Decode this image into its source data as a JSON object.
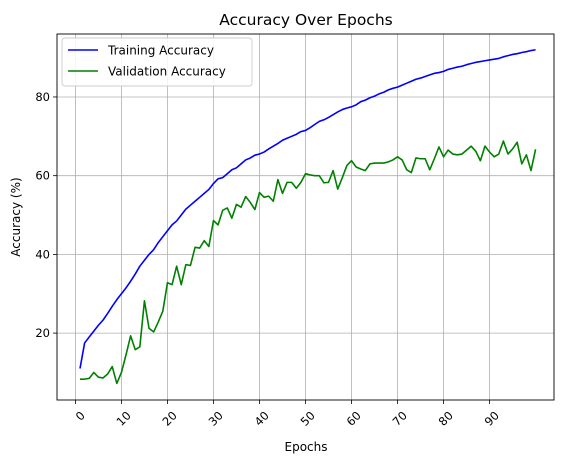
{
  "chart_data": {
    "type": "line",
    "title": "Accuracy Over Epochs",
    "xlabel": "Epochs",
    "ylabel": "Accuracy (%)",
    "xlim": [
      -4,
      104
    ],
    "ylim": [
      3,
      96
    ],
    "xticks": [
      0,
      10,
      20,
      30,
      40,
      50,
      60,
      70,
      80,
      90
    ],
    "yticks": [
      20,
      40,
      60,
      80
    ],
    "grid": true,
    "legend_position": "top-left",
    "x": [
      1,
      2,
      3,
      4,
      5,
      6,
      7,
      8,
      9,
      10,
      11,
      12,
      13,
      14,
      15,
      16,
      17,
      18,
      19,
      20,
      21,
      22,
      23,
      24,
      25,
      26,
      27,
      28,
      29,
      30,
      31,
      32,
      33,
      34,
      35,
      36,
      37,
      38,
      39,
      40,
      41,
      42,
      43,
      44,
      45,
      46,
      47,
      48,
      49,
      50,
      51,
      52,
      53,
      54,
      55,
      56,
      57,
      58,
      59,
      60,
      61,
      62,
      63,
      64,
      65,
      66,
      67,
      68,
      69,
      70,
      71,
      72,
      73,
      74,
      75,
      76,
      77,
      78,
      79,
      80,
      81,
      82,
      83,
      84,
      85,
      86,
      87,
      88,
      89,
      90,
      91,
      92,
      93,
      94,
      95,
      96,
      97,
      98,
      99,
      100
    ],
    "series": [
      {
        "name": "Training Accuracy",
        "color": "#0000ff",
        "values": [
          11,
          17.5,
          19,
          20.5,
          22,
          23.3,
          25,
          26.8,
          28.5,
          30,
          31.5,
          33.2,
          35,
          37,
          38.5,
          40,
          41.2,
          43,
          44.5,
          46,
          47.5,
          48.5,
          50,
          51.5,
          52.5,
          53.5,
          54.5,
          55.5,
          56.5,
          58,
          59.2,
          59.5,
          60.5,
          61.5,
          62,
          63,
          64,
          64.5,
          65.2,
          65.5,
          66,
          66.8,
          67.5,
          68.2,
          69,
          69.5,
          70,
          70.5,
          71.2,
          71.5,
          72.2,
          73,
          73.8,
          74.2,
          74.8,
          75.5,
          76.2,
          76.8,
          77.2,
          77.5,
          78,
          78.8,
          79.2,
          79.8,
          80.2,
          80.8,
          81.2,
          81.8,
          82.2,
          82.5,
          83,
          83.5,
          84,
          84.5,
          84.8,
          85.2,
          85.6,
          86,
          86.2,
          86.5,
          87,
          87.3,
          87.6,
          87.8,
          88.2,
          88.5,
          88.8,
          89,
          89.2,
          89.4,
          89.6,
          89.8,
          90.2,
          90.5,
          90.8,
          91,
          91.3,
          91.5,
          91.8,
          92
        ]
      },
      {
        "name": "Validation Accuracy",
        "color": "#008000",
        "values": [
          8.3,
          8.3,
          8.5,
          10,
          8.8,
          8.6,
          9.6,
          11.5,
          7.2,
          10,
          14.5,
          19.3,
          15.8,
          16.5,
          28.2,
          21.2,
          20.3,
          22.8,
          25.6,
          32.8,
          32.3,
          37,
          32.3,
          37.4,
          37.2,
          41.8,
          41.6,
          43.5,
          42,
          48.6,
          47.5,
          51.2,
          51.8,
          49.2,
          52.7,
          52,
          54.7,
          53.2,
          51.4,
          55.7,
          54.5,
          54.8,
          53.5,
          59,
          55.5,
          58.3,
          58.3,
          56.8,
          58.3,
          60.5,
          60.2,
          60,
          60,
          58.2,
          58.3,
          61.3,
          56.6,
          59.5,
          62.6,
          63.8,
          62.2,
          61.7,
          61.3,
          63,
          63.2,
          63.2,
          63.2,
          63.5,
          64,
          64.8,
          64,
          61.5,
          60.8,
          64.5,
          64.3,
          64.3,
          61.5,
          64.3,
          67.3,
          64.8,
          66.5,
          65.5,
          65.3,
          65.5,
          66.5,
          67.5,
          66.2,
          63.8,
          67.5,
          66,
          64.8,
          65.5,
          68.8,
          65.5,
          66.8,
          68.5,
          63,
          65.3,
          61.3,
          66.7
        ]
      }
    ]
  }
}
